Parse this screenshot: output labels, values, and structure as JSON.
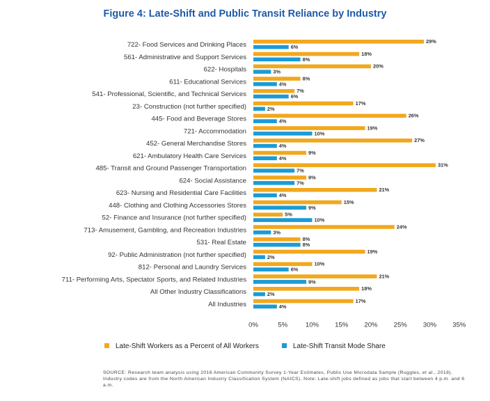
{
  "chart_data": {
    "type": "bar",
    "orientation": "horizontal",
    "title": "Figure 4: Late-Shift and Public Transit Reliance by Industry",
    "categories": [
      "722- Food Services and Drinking Places",
      "561- Administrative and Support Services",
      "622- Hospitals",
      "611- Educational Services",
      "541- Professional, Scientific, and Technical Services",
      "23- Construction (not further specified)",
      "445- Food and Beverage Stores",
      "721- Accommodation",
      "452- General Merchandise Stores",
      "621- Ambulatory Health Care Services",
      "485- Transit and Ground Passenger Transportation",
      "624- Social Assistance",
      "623- Nursing and Residential Care Facilities",
      "448- Clothing and Clothing Accessories Stores",
      "52- Finance and Insurance (not further specified)",
      "713- Amusement, Gambling, and Recreation Industries",
      "531- Real Estate",
      "92- Public Administration (not further specified)",
      "812- Personal and Laundry Services",
      "711- Performing Arts, Spectator Sports, and Related Industries",
      "All Other Industry Classifications",
      "All Industries"
    ],
    "series": [
      {
        "name": "Late-Shift Workers as a Percent of All Workers",
        "color": "#f2a81d",
        "values": [
          29,
          18,
          20,
          8,
          7,
          17,
          26,
          19,
          27,
          9,
          31,
          9,
          21,
          15,
          5,
          24,
          8,
          19,
          10,
          21,
          18,
          17
        ],
        "labels": [
          "29%",
          "18%",
          "20%",
          "8%",
          "7%",
          "17%",
          "26%",
          "19%",
          "27%",
          "9%",
          "31%",
          "9%",
          "21%",
          "15%",
          "5%",
          "24%",
          "8%",
          "19%",
          "10%",
          "21%",
          "18%",
          "17%"
        ]
      },
      {
        "name": "Late-Shift Transit Mode Share",
        "color": "#1a9bd7",
        "values": [
          6,
          8,
          3,
          4,
          6,
          2,
          4,
          10,
          4,
          4,
          7,
          7,
          4,
          9,
          10,
          3,
          8,
          2,
          6,
          9,
          2,
          4
        ],
        "labels": [
          "6%",
          "8%",
          "3%",
          "4%",
          "6%",
          "2%",
          "4%",
          "10%",
          "4%",
          "4%",
          "7%",
          "7%",
          "4%",
          "9%",
          "10%",
          "3%",
          "8%",
          "2%",
          "6%",
          "9%",
          "2%",
          "4%"
        ]
      }
    ],
    "xlim": [
      0,
      35
    ],
    "xticks": [
      0,
      5,
      10,
      15,
      20,
      25,
      30,
      35
    ],
    "xtick_labels": [
      "0%",
      "5%",
      "10%",
      "15%",
      "20%",
      "25%",
      "30%",
      "35%"
    ],
    "grid": false,
    "legend_position": "bottom"
  },
  "source_note": "SOURCE: Research team analysis using 2016 American Community Survey 1-Year Estimates, Public Use Microdata Sample (Ruggles, et al., 2018). Industry codes are from the North American Industry Classification System (NAICS). Note: Late-shift jobs defined as jobs that start between 4 p.m. and 6 a.m."
}
